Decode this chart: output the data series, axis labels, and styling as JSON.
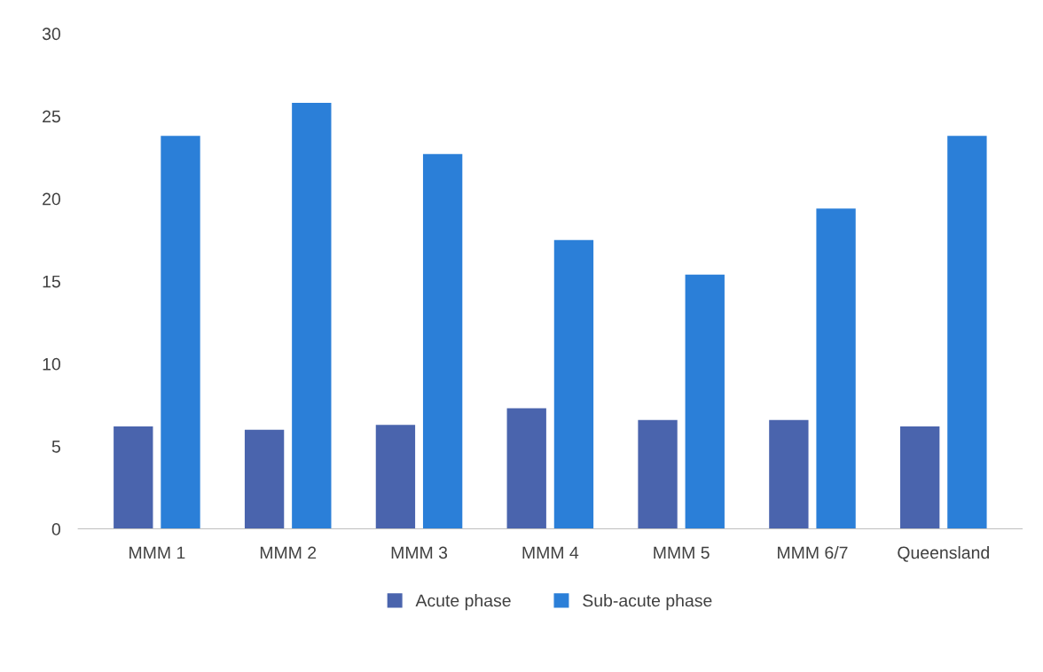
{
  "chart_data": {
    "type": "bar",
    "categories": [
      "MMM 1",
      "MMM 2",
      "MMM 3",
      "MMM 4",
      "MMM 5",
      "MMM 6/7",
      "Queensland"
    ],
    "series": [
      {
        "name": "Acute phase",
        "color": "#4a64ad",
        "values": [
          6.2,
          6.0,
          6.3,
          7.3,
          6.6,
          6.6,
          6.2
        ]
      },
      {
        "name": "Sub-acute phase",
        "color": "#2b7fd8",
        "values": [
          23.8,
          25.8,
          22.7,
          17.5,
          15.4,
          19.4,
          23.8
        ]
      }
    ],
    "ylim": [
      0,
      30
    ],
    "yticks": [
      0,
      5,
      10,
      15,
      20,
      25,
      30
    ],
    "grid": false,
    "legend": "bottom"
  }
}
